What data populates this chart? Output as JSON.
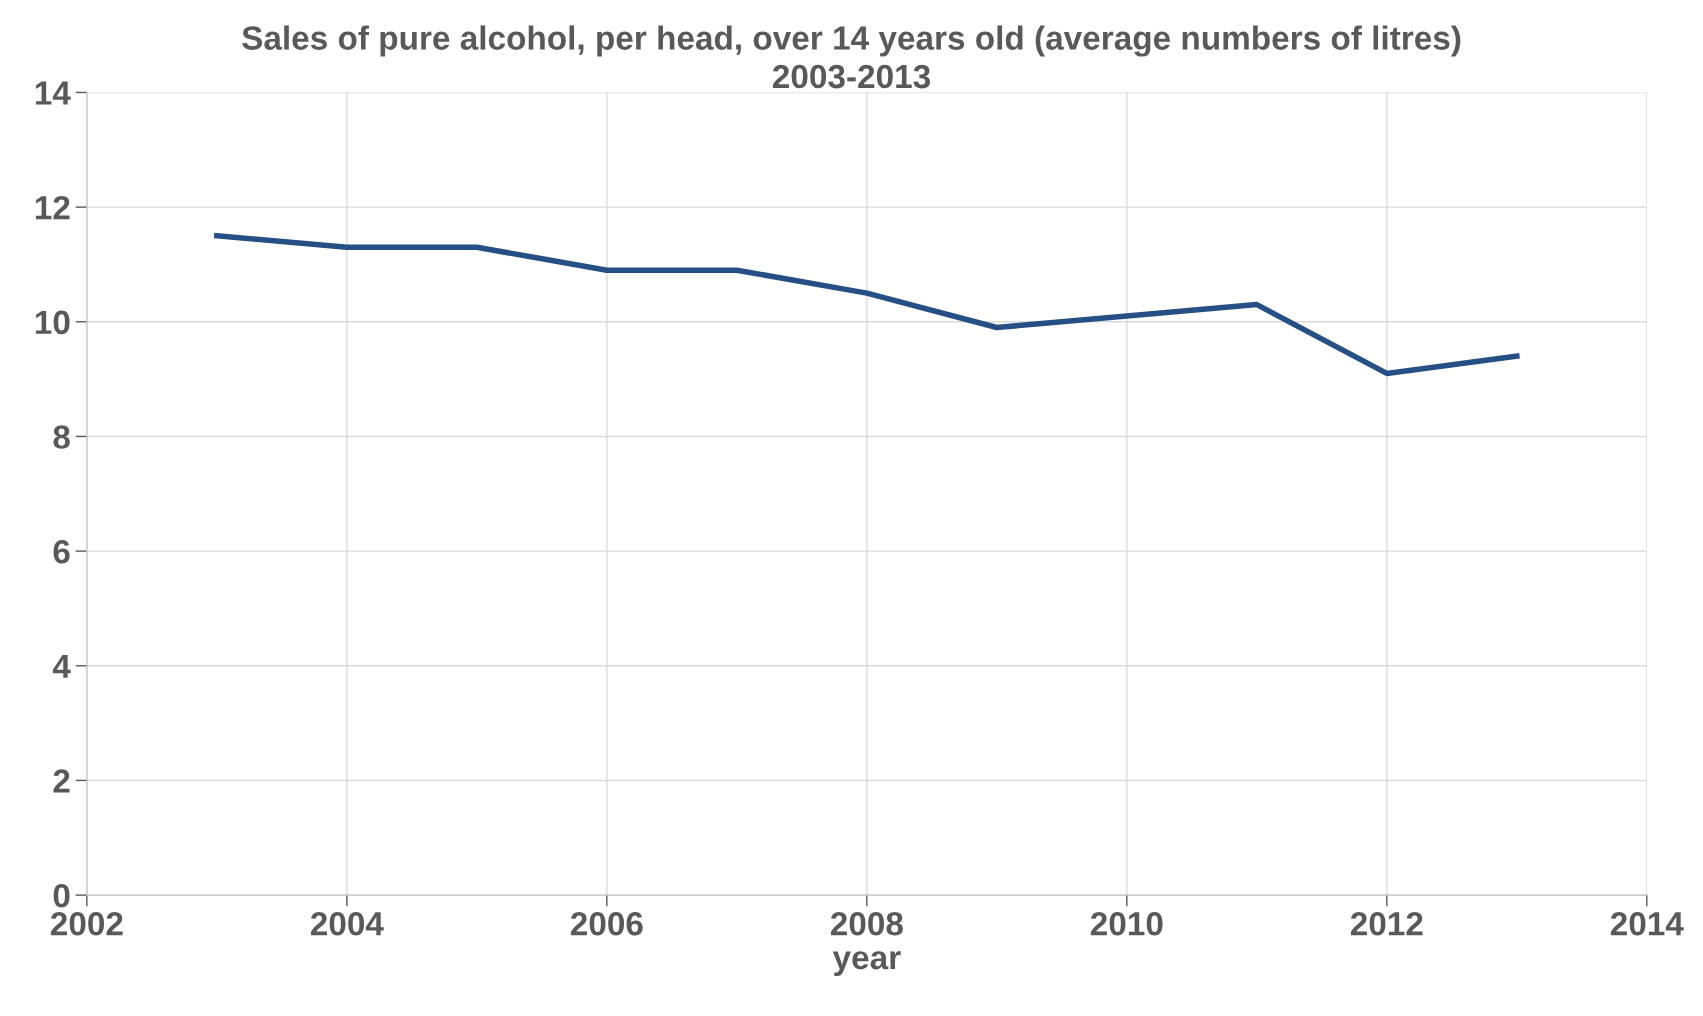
{
  "chart_data": {
    "type": "line",
    "title": "Sales of pure alcohol, per head, over 14 years old (average numbers of litres)\n2003-2013",
    "xlabel": "year",
    "x": [
      2003,
      2004,
      2005,
      2006,
      2007,
      2008,
      2009,
      2010,
      2011,
      2012,
      2013
    ],
    "series": [
      {
        "color": "#264f85",
        "values": [
          11.5,
          11.3,
          11.3,
          10.9,
          10.9,
          10.5,
          9.9,
          10.1,
          10.3,
          9.1,
          9.4
        ]
      }
    ],
    "xlim": [
      2002,
      2014
    ],
    "xticks": [
      2002,
      2004,
      2006,
      2008,
      2010,
      2012,
      2014
    ],
    "ylim": [
      0,
      14
    ],
    "yticks": [
      0,
      2,
      4,
      6,
      8,
      10,
      12,
      14
    ],
    "grid": true,
    "marker": "none",
    "line_style": "solid"
  }
}
